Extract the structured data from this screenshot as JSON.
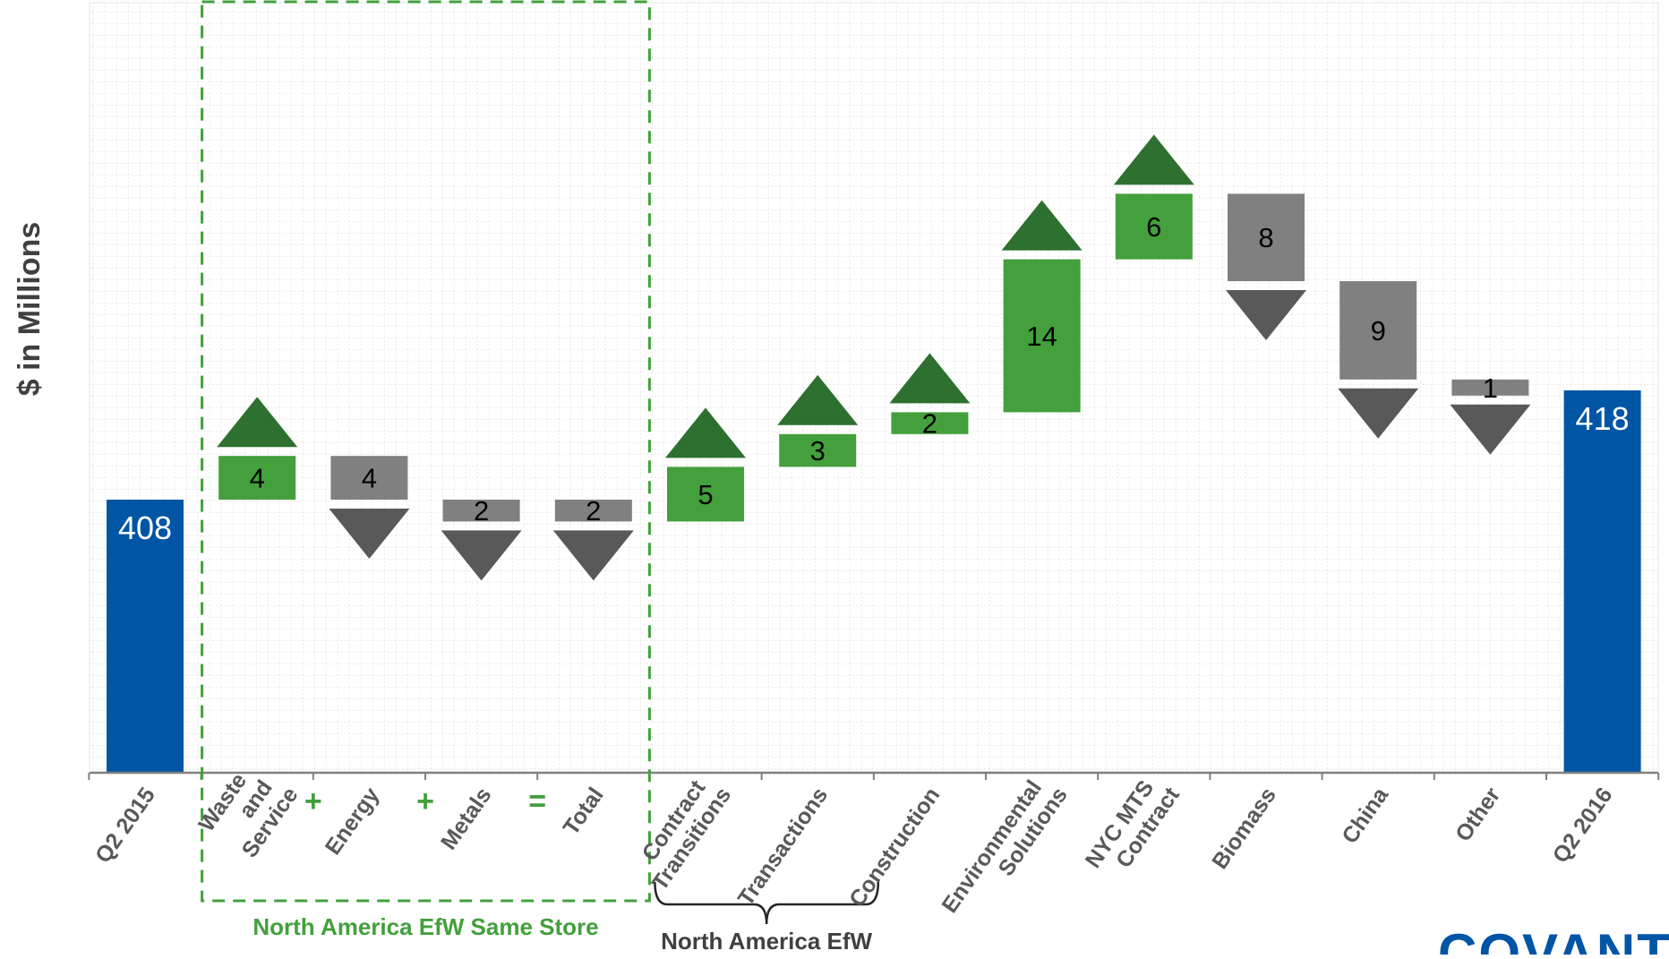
{
  "chart_data": {
    "type": "waterfall",
    "ylabel": "$ in Millions",
    "ylim": [
      383,
      425
    ],
    "grid": true,
    "categories": [
      [
        "Q2 2015"
      ],
      [
        "Waste",
        "and",
        "Service"
      ],
      [
        "Energy"
      ],
      [
        "Metals"
      ],
      [
        "Total"
      ],
      [
        "Contract",
        "Transitions"
      ],
      [
        "Transactions"
      ],
      [
        "Construction"
      ],
      [
        "Environmental",
        "Solutions"
      ],
      [
        "NYC MTS",
        "Contract"
      ],
      [
        "Biomass"
      ],
      [
        "China"
      ],
      [
        "Other"
      ],
      [
        "Q2 2016"
      ]
    ],
    "bars": [
      {
        "kind": "total",
        "label": "408",
        "start": 383,
        "end": 408
      },
      {
        "kind": "increase",
        "label": "4",
        "start": 408,
        "end": 412
      },
      {
        "kind": "decrease",
        "label": "4",
        "start": 412,
        "end": 408
      },
      {
        "kind": "decrease",
        "label": "2",
        "start": 408,
        "end": 406
      },
      {
        "kind": "decrease",
        "label": "2",
        "start": 408,
        "end": 406
      },
      {
        "kind": "increase",
        "label": "5",
        "start": 406,
        "end": 411
      },
      {
        "kind": "increase",
        "label": "3",
        "start": 411,
        "end": 414
      },
      {
        "kind": "increase",
        "label": "2",
        "start": 414,
        "end": 416
      },
      {
        "kind": "increase",
        "label": "14",
        "start": 416,
        "end": 430
      },
      {
        "kind": "increase",
        "label": "6",
        "start": 430,
        "end": 436
      },
      {
        "kind": "decrease",
        "label": "8",
        "start": 436,
        "end": 428
      },
      {
        "kind": "decrease",
        "label": "9",
        "start": 428,
        "end": 419
      },
      {
        "kind": "decrease",
        "label": "1",
        "start": 419,
        "end": 418
      },
      {
        "kind": "total",
        "label": "418",
        "start": 383,
        "end": 418
      }
    ],
    "operators": [
      "+",
      "+",
      "="
    ],
    "groups": [
      {
        "label": "North America EfW Same Store"
      },
      {
        "label": "North America EfW"
      }
    ],
    "colors": {
      "total": "#0055a5",
      "increase": "#43a03c",
      "increase_arrow": "#2e7030",
      "decrease": "#808080",
      "decrease_arrow": "#595959",
      "grid": "#d9d9d9",
      "axis": "#808080",
      "group_box": "#43a03c"
    }
  },
  "logo": {
    "text": "COVANTA"
  }
}
